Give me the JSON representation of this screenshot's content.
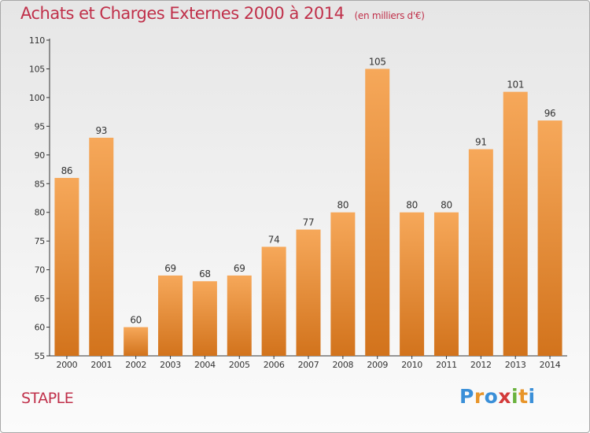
{
  "header": {
    "title": "Achats et Charges Externes 2000 à 2014",
    "subtitle": "(en milliers d'€)"
  },
  "footer": {
    "commune": "STAPLE",
    "logo_letters": [
      "P",
      "r",
      "o",
      "x",
      "i",
      "t",
      "i"
    ],
    "logo_colors": [
      "#3a8fd8",
      "#e8952a",
      "#3a8fd8",
      "#d33a3a",
      "#6ab23e",
      "#e8952a",
      "#3a8fd8"
    ]
  },
  "chart_data": {
    "type": "bar",
    "categories": [
      "2000",
      "2001",
      "2002",
      "2003",
      "2004",
      "2005",
      "2006",
      "2007",
      "2008",
      "2009",
      "2010",
      "2011",
      "2012",
      "2013",
      "2014"
    ],
    "values": [
      86,
      93,
      60,
      69,
      68,
      69,
      74,
      77,
      80,
      105,
      80,
      80,
      91,
      101,
      96
    ],
    "ylim": [
      55,
      110
    ],
    "yticks": [
      55,
      60,
      65,
      70,
      75,
      80,
      85,
      90,
      95,
      100,
      105,
      110
    ],
    "grid": false,
    "bar_color_top": "#f6a85a",
    "bar_color_bottom": "#d2731c",
    "title": "Achats et Charges Externes 2000 à 2014",
    "xlabel": "",
    "ylabel": ""
  }
}
